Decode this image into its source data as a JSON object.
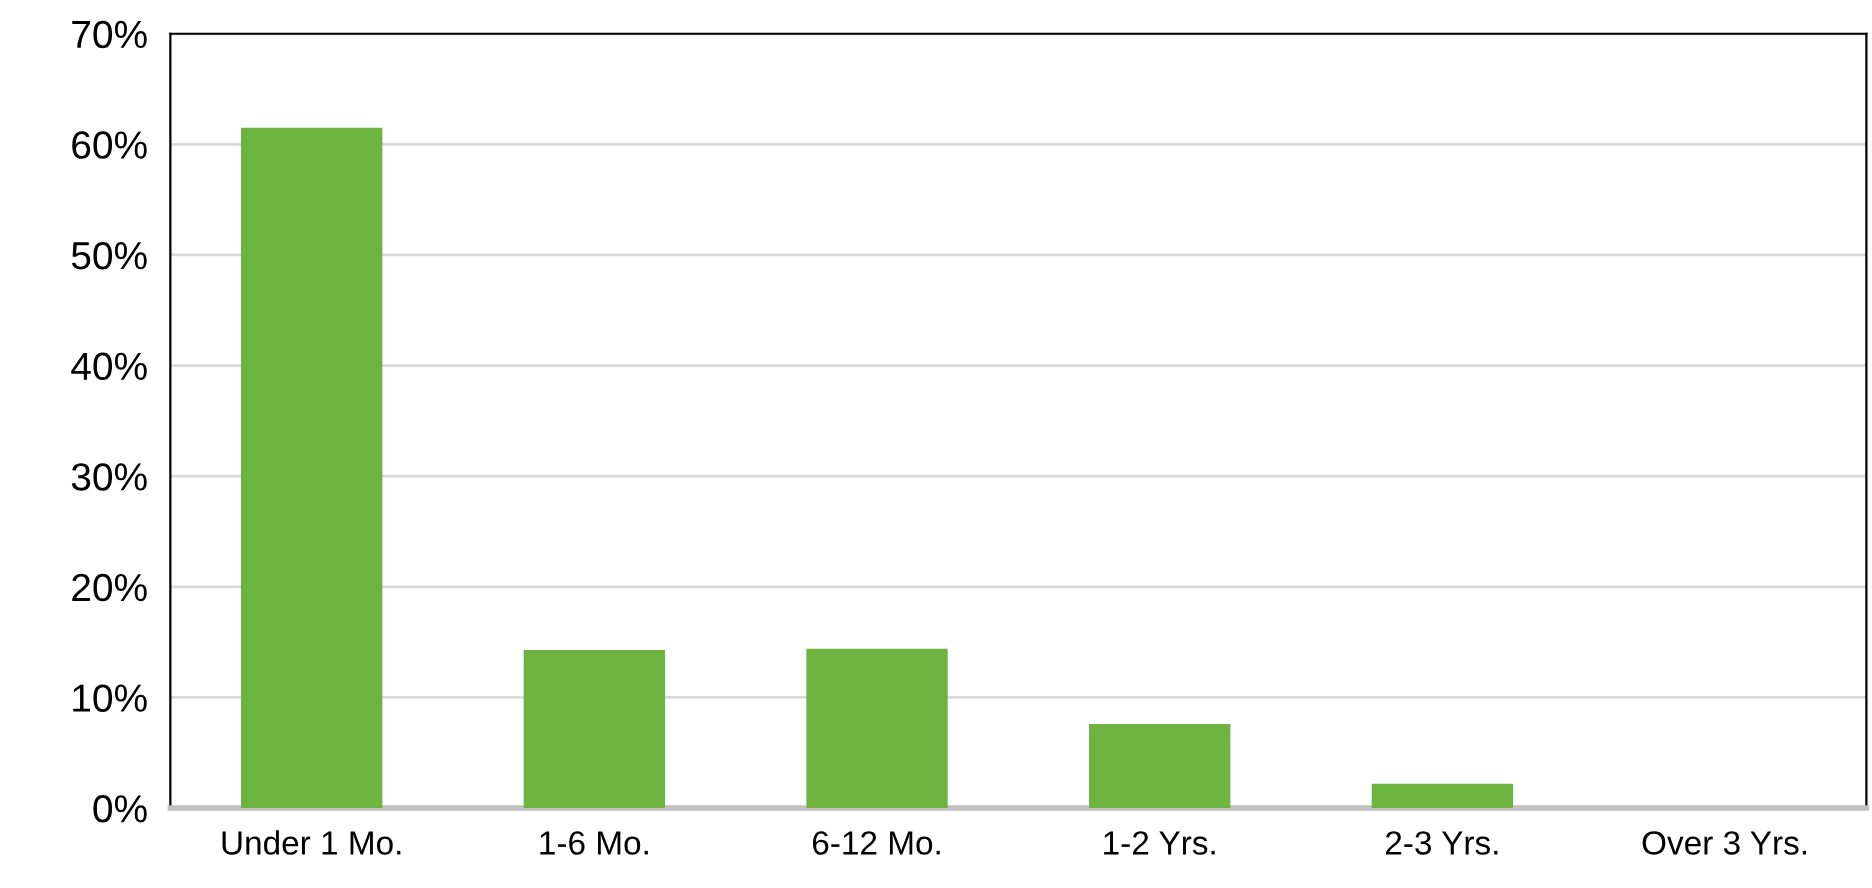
{
  "chart_data": {
    "type": "bar",
    "categories": [
      "Under 1 Mo.",
      "1-6 Mo.",
      "6-12 Mo.",
      "1-2 Yrs.",
      "2-3 Yrs.",
      "Over 3 Yrs."
    ],
    "values": [
      61.5,
      14.3,
      14.4,
      7.6,
      2.2,
      0
    ],
    "color": "#6db33f",
    "ylim": [
      0,
      70
    ],
    "yticks": [
      {
        "value": 0,
        "label": "0%"
      },
      {
        "value": 10,
        "label": "10%"
      },
      {
        "value": 20,
        "label": "20%"
      },
      {
        "value": 30,
        "label": "30%"
      },
      {
        "value": 40,
        "label": "40%"
      },
      {
        "value": 50,
        "label": "50%"
      },
      {
        "value": 60,
        "label": "60%"
      },
      {
        "value": 70,
        "label": "70%"
      }
    ],
    "grid": "y"
  }
}
